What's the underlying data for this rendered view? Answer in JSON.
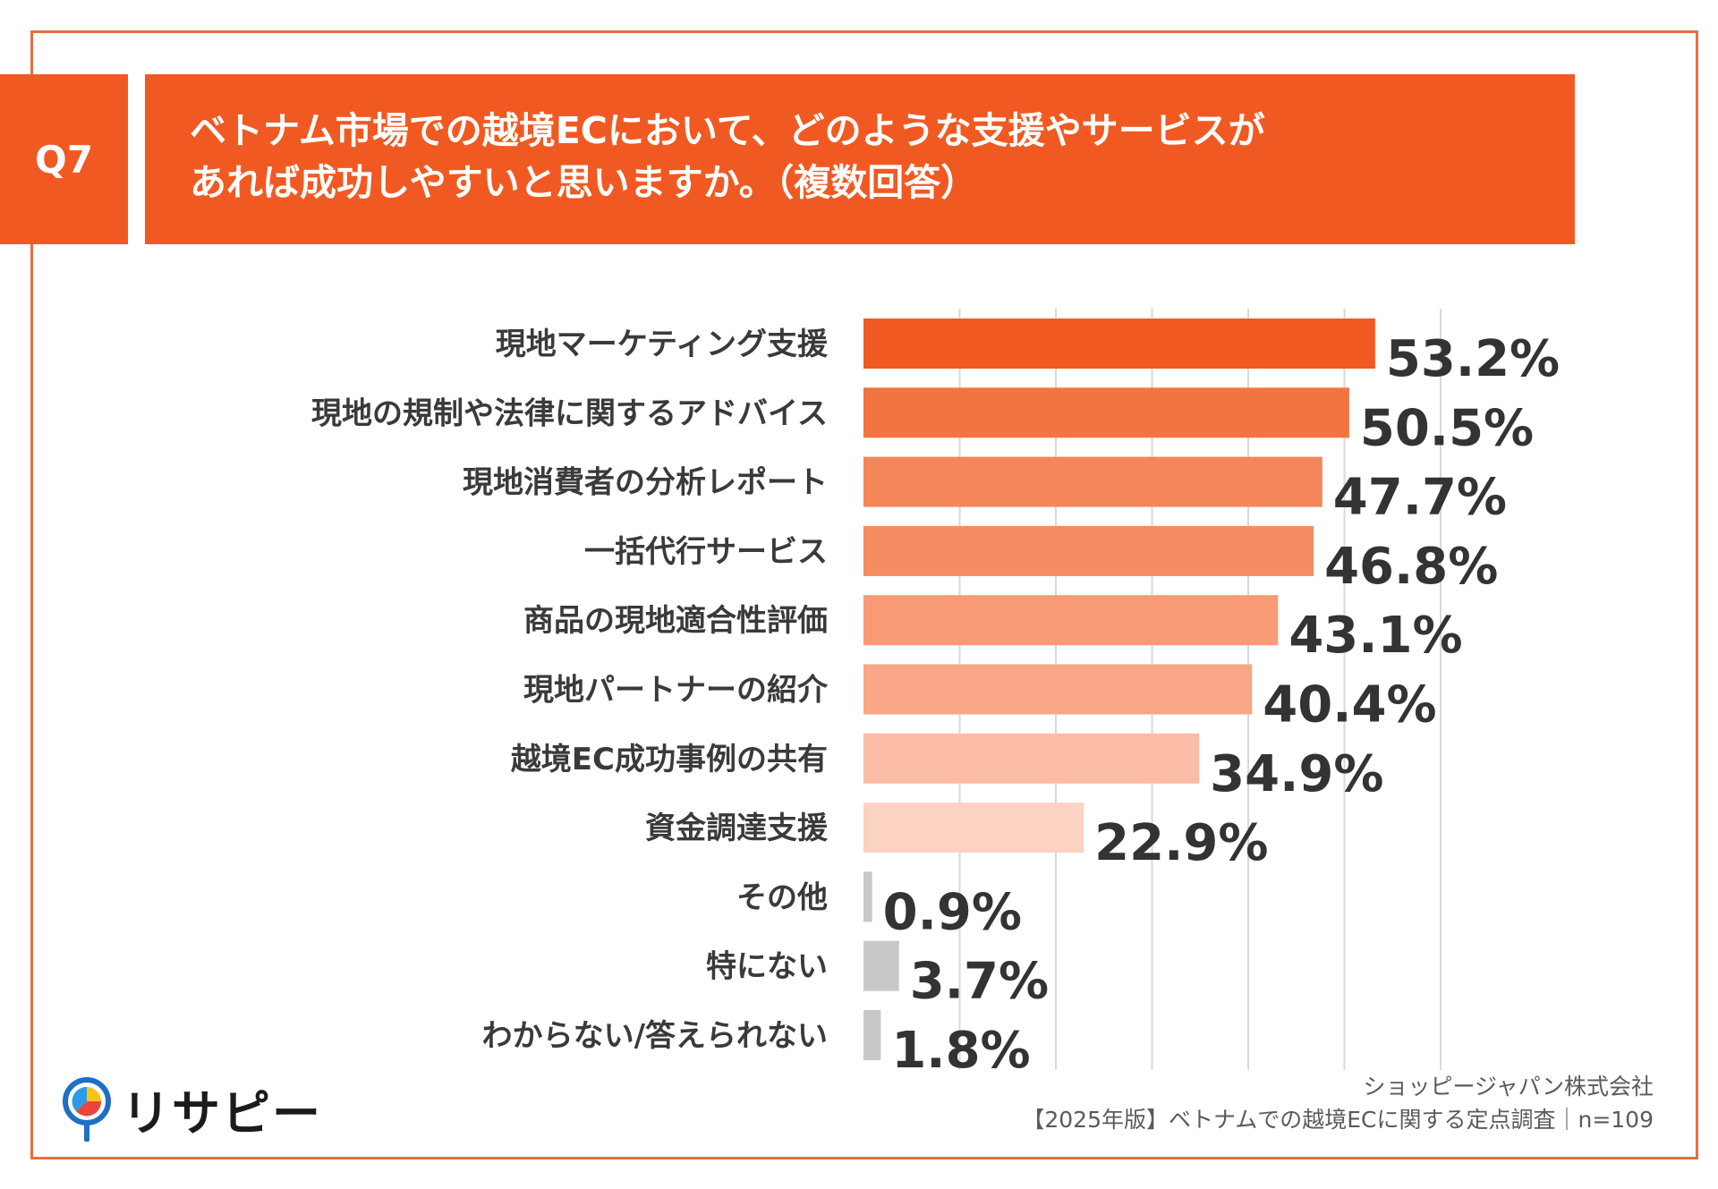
{
  "question": {
    "number": "Q7",
    "title_line1": "ベトナム市場での越境ECにおいて、どのような支援やサービスが",
    "title_line2": "あれば成功しやすいと思いますか。（複数回答）"
  },
  "chart_data": {
    "type": "bar",
    "orientation": "horizontal",
    "title": "ベトナム市場での越境ECにおいて、どのような支援やサービスがあれば成功しやすいと思いますか。（複数回答）",
    "categories": [
      "現地マーケティング支援",
      "現地の規制や法律に関するアドバイス",
      "現地消費者の分析レポート",
      "一括代行サービス",
      "商品の現地適合性評価",
      "現地パートナーの紹介",
      "越境EC成功事例の共有",
      "資金調達支援",
      "その他",
      "特にない",
      "わからない/答えられない"
    ],
    "values": [
      53.2,
      50.5,
      47.7,
      46.8,
      43.1,
      40.4,
      34.9,
      22.9,
      0.9,
      3.7,
      1.8
    ],
    "value_labels": [
      "53.2%",
      "50.5%",
      "47.7%",
      "46.8%",
      "43.1%",
      "40.4%",
      "34.9%",
      "22.9%",
      "0.9%",
      "3.7%",
      "1.8%"
    ],
    "colors": [
      "#f05a22",
      "#f2743f",
      "#f4865a",
      "#f58c62",
      "#f79a75",
      "#f8a686",
      "#fabca4",
      "#fcd2c2",
      "#c8c8c8",
      "#c8c8c8",
      "#c8c8c8"
    ],
    "xlim": [
      0,
      60
    ],
    "grid": true,
    "unit": "%"
  },
  "footer": {
    "company": "ショッピージャパン株式会社",
    "survey": "【2025年版】ベトナムでの越境ECに関する定点調査｜n=109"
  },
  "logo": {
    "text": "リサピー",
    "icon": "pin-pie-icon"
  }
}
